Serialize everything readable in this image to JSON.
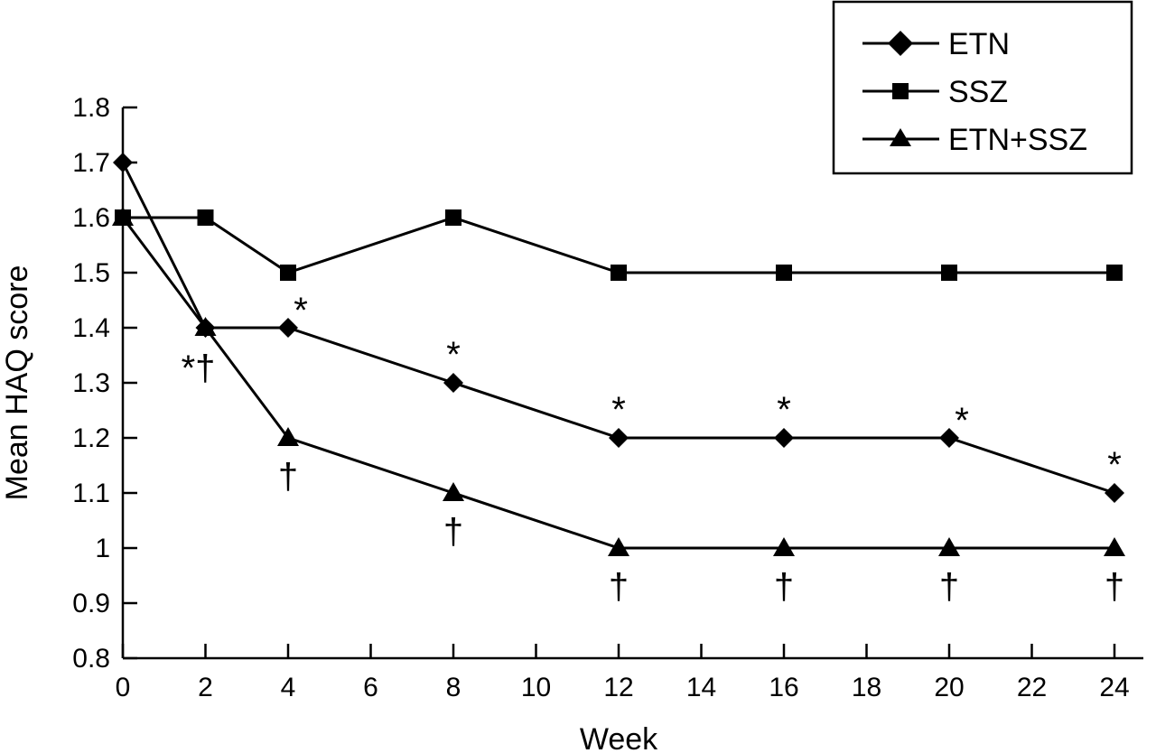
{
  "chart_data": {
    "type": "line",
    "xlabel": "Week",
    "ylabel": "Mean HAQ score",
    "xlim": [
      0,
      24
    ],
    "ylim": [
      0.8,
      1.8
    ],
    "xticks": [
      "0",
      "2",
      "4",
      "6",
      "8",
      "10",
      "12",
      "14",
      "16",
      "18",
      "20",
      "22",
      "24"
    ],
    "yticks": [
      "0.8",
      "0.9",
      "1",
      "1.1",
      "1.2",
      "1.3",
      "1.4",
      "1.5",
      "1.6",
      "1.7",
      "1.8"
    ],
    "grid": false,
    "legend": {
      "placement": "top-right",
      "boxed": true
    },
    "series": [
      {
        "name": "ETN",
        "marker": "diamond",
        "x": [
          0,
          2,
          4,
          8,
          12,
          16,
          20,
          24
        ],
        "y": [
          1.7,
          1.4,
          1.4,
          1.3,
          1.2,
          1.2,
          1.2,
          1.1
        ]
      },
      {
        "name": "SSZ",
        "marker": "square",
        "x": [
          0,
          2,
          4,
          8,
          12,
          16,
          20,
          24
        ],
        "y": [
          1.6,
          1.6,
          1.5,
          1.6,
          1.5,
          1.5,
          1.5,
          1.5
        ]
      },
      {
        "name": "ETN+SSZ",
        "marker": "triangle",
        "x": [
          0,
          2,
          4,
          8,
          12,
          16,
          20,
          24
        ],
        "y": [
          1.6,
          1.4,
          1.2,
          1.1,
          1.0,
          1.0,
          1.0,
          1.0
        ]
      }
    ],
    "annotations": [
      {
        "text": "*†",
        "x": 2,
        "y": 1.4,
        "placement": "below-left"
      },
      {
        "text": "*",
        "x": 4,
        "y": 1.4,
        "placement": "above-right"
      },
      {
        "text": "*",
        "x": 8,
        "y": 1.3,
        "placement": "above"
      },
      {
        "text": "*",
        "x": 12,
        "y": 1.2,
        "placement": "above"
      },
      {
        "text": "*",
        "x": 16,
        "y": 1.2,
        "placement": "above"
      },
      {
        "text": "*",
        "x": 20,
        "y": 1.2,
        "placement": "above-right"
      },
      {
        "text": "*",
        "x": 24,
        "y": 1.1,
        "placement": "above"
      },
      {
        "text": "†",
        "x": 4,
        "y": 1.2,
        "placement": "below"
      },
      {
        "text": "†",
        "x": 8,
        "y": 1.1,
        "placement": "below"
      },
      {
        "text": "†",
        "x": 12,
        "y": 1.0,
        "placement": "below"
      },
      {
        "text": "†",
        "x": 16,
        "y": 1.0,
        "placement": "below"
      },
      {
        "text": "†",
        "x": 20,
        "y": 1.0,
        "placement": "below"
      },
      {
        "text": "†",
        "x": 24,
        "y": 1.0,
        "placement": "below"
      }
    ]
  }
}
